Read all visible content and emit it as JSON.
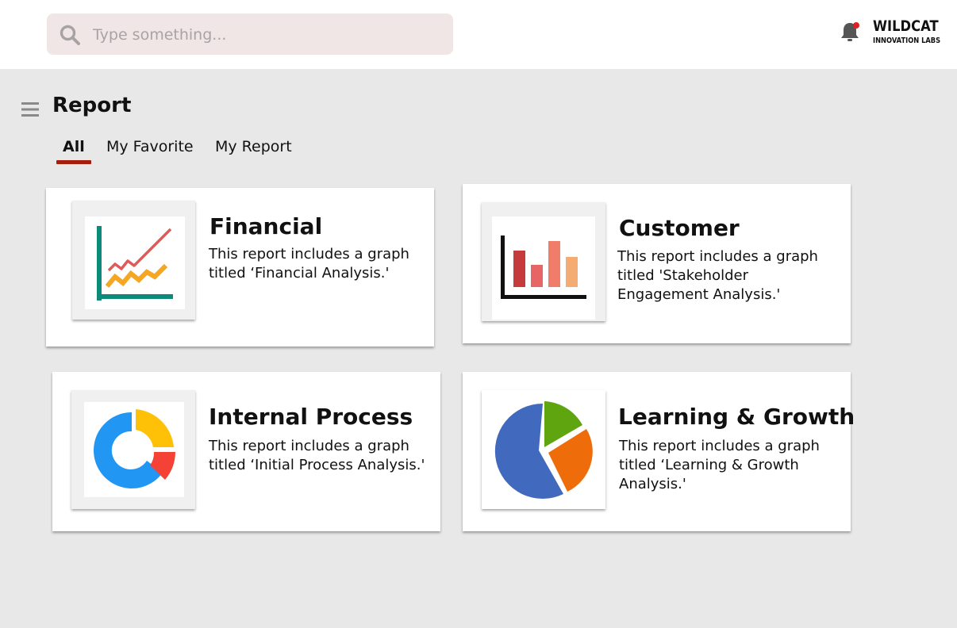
{
  "header": {
    "search": {
      "placeholder": "Type something...",
      "value": ""
    },
    "notification_icon": "bell-icon",
    "notification_badge_color": "#e02020",
    "logo": {
      "line1": "WILDCAT",
      "line2": "INNOVATION LABS"
    }
  },
  "page": {
    "menu_icon": "hamburger-icon",
    "title": "Report",
    "tabs": [
      {
        "label": "All",
        "active": true
      },
      {
        "label": "My Favorite",
        "active": false
      },
      {
        "label": "My Report",
        "active": false
      }
    ],
    "accent_color": "#a41e0e"
  },
  "reports": [
    {
      "title": "Financial",
      "description": "This report includes a graph titled ‘Financial Analysis.'",
      "icon": "line-chart-icon"
    },
    {
      "title": "Customer",
      "description": "This report includes a graph titled 'Stakeholder Engagement Analysis.'",
      "icon": "bar-chart-icon"
    },
    {
      "title": "Internal Process",
      "description": "This report includes a graph titled ‘Initial Process Analysis.'",
      "icon": "donut-chart-icon"
    },
    {
      "title": "Learning & Growth",
      "description": "This report includes a graph titled ‘Learning & Growth Analysis.'",
      "icon": "pie-chart-icon"
    }
  ]
}
